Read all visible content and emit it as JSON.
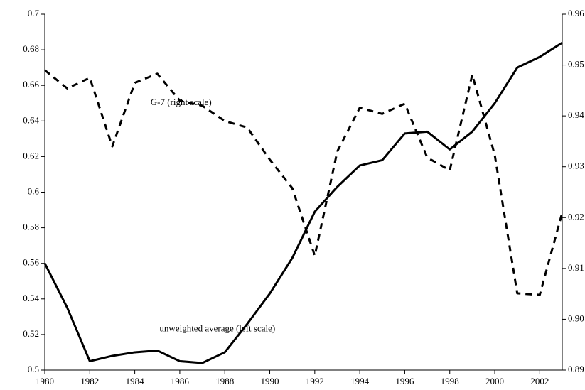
{
  "chart_data": {
    "type": "line",
    "x": [
      1980,
      1981,
      1982,
      1983,
      1984,
      1985,
      1986,
      1987,
      1988,
      1989,
      1990,
      1991,
      1992,
      1993,
      1994,
      1995,
      1996,
      1997,
      1998,
      1999,
      2000,
      2001,
      2002,
      2003
    ],
    "xlim": [
      1980,
      2003
    ],
    "xticks": [
      1980,
      1982,
      1984,
      1986,
      1988,
      1990,
      1992,
      1994,
      1996,
      1998,
      2000,
      2002
    ],
    "ylim": [
      0.5,
      0.7
    ],
    "yticks": [
      0.5,
      0.52,
      0.54,
      0.56,
      0.58,
      0.6,
      0.62,
      0.64,
      0.66,
      0.68,
      0.7
    ],
    "y2lim": [
      0.89,
      0.96
    ],
    "y2ticks": [
      0.89,
      {
        "value": 0.9,
        "label": "0.90"
      },
      0.91,
      0.92,
      0.93,
      0.94,
      0.95,
      0.96
    ],
    "series": [
      {
        "color": "#000000",
        "linestyle": "solid",
        "axis": "y",
        "values": [
          0.56,
          0.535,
          0.505,
          0.508,
          0.51,
          0.511,
          0.505,
          0.504,
          0.51,
          0.526,
          0.543,
          0.563,
          0.589,
          0.603,
          0.615,
          0.618,
          0.633,
          0.634,
          0.624,
          0.634,
          0.65,
          0.67,
          0.676,
          0.684
        ]
      },
      {
        "color": "#000000",
        "linestyle": "dashed",
        "axis": "y2",
        "values": [
          0.949,
          0.9454,
          0.9475,
          0.934,
          0.9465,
          0.9483,
          0.943,
          0.942,
          0.939,
          0.9377,
          0.9314,
          0.9258,
          0.9125,
          0.933,
          0.9416,
          0.9404,
          0.9424,
          0.9318,
          0.9293,
          0.9481,
          0.9323,
          0.9051,
          0.9048,
          0.921
        ]
      }
    ],
    "annotations": [
      {
        "text": "G-7 (right scale)",
        "x": 1984.7,
        "y2": 0.9425
      },
      {
        "text": "unweighted average (left scale)",
        "x": 1985.1,
        "y": 0.523
      }
    ]
  }
}
